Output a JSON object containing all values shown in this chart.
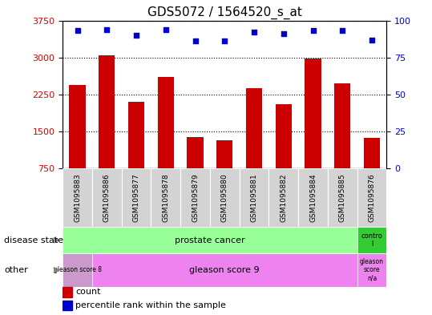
{
  "title": "GDS5072 / 1564520_s_at",
  "samples": [
    "GSM1095883",
    "GSM1095886",
    "GSM1095877",
    "GSM1095878",
    "GSM1095879",
    "GSM1095880",
    "GSM1095881",
    "GSM1095882",
    "GSM1095884",
    "GSM1095885",
    "GSM1095876"
  ],
  "counts": [
    2450,
    3050,
    2100,
    2600,
    1380,
    1330,
    2380,
    2050,
    2980,
    2480,
    1370
  ],
  "percentiles": [
    93,
    94,
    90,
    94,
    86,
    86,
    92,
    91,
    93,
    93,
    87
  ],
  "ylim_left": [
    750,
    3750
  ],
  "yticks_left": [
    750,
    1500,
    2250,
    3000,
    3750
  ],
  "ylim_right": [
    0,
    100
  ],
  "yticks_right": [
    0,
    25,
    50,
    75,
    100
  ],
  "bar_color": "#cc0000",
  "scatter_color": "#0000cc",
  "bar_width": 0.55,
  "bg_color": "#ffffff",
  "grid_color": "#000000",
  "tick_label_color_left": "#cc0000",
  "tick_label_color_right": "#0000cc",
  "gleason_score8_color": "#cc99cc",
  "gleason_score9_color": "#ee82ee",
  "gleason_na_color": "#ee82ee",
  "prostate_cancer_color": "#99ff99",
  "control_color": "#33cc33"
}
